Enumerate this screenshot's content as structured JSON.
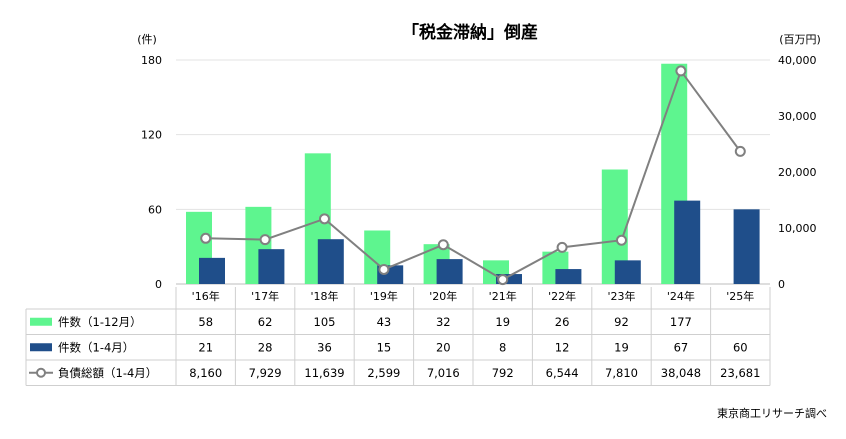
{
  "chart_data": {
    "type": "bar",
    "title": "「税金滞納」倒産",
    "left_unit": "(件)",
    "right_unit": "(百万円)",
    "left_ylim": [
      0,
      180
    ],
    "left_ticks": [
      "0",
      "60",
      "120",
      "180"
    ],
    "right_ylim": [
      0,
      40000
    ],
    "right_ticks": [
      "0",
      "10,000",
      "20,000",
      "30,000",
      "40,000"
    ],
    "categories": [
      "'16年",
      "'17年",
      "'18年",
      "'19年",
      "'20年",
      "'21年",
      "'22年",
      "'23年",
      "'24年",
      "'25年"
    ],
    "series": [
      {
        "name": "件数（1-12月）",
        "type": "bar",
        "axis": "left",
        "color": "#5ef58f",
        "values": [
          58,
          62,
          105,
          43,
          32,
          19,
          26,
          92,
          177,
          null
        ],
        "labels": [
          "58",
          "62",
          "105",
          "43",
          "32",
          "19",
          "26",
          "92",
          "177",
          ""
        ]
      },
      {
        "name": "件数（1-4月）",
        "type": "bar",
        "axis": "left",
        "color": "#1f4e8a",
        "values": [
          21,
          28,
          36,
          15,
          20,
          8,
          12,
          19,
          67,
          60
        ],
        "labels": [
          "21",
          "28",
          "36",
          "15",
          "20",
          "8",
          "12",
          "19",
          "67",
          "60"
        ]
      },
      {
        "name": "負債総額（1-4月）",
        "type": "line",
        "axis": "right",
        "color": "#808080",
        "values": [
          8160,
          7929,
          11639,
          2599,
          7016,
          792,
          6544,
          7810,
          38048,
          23681
        ],
        "labels": [
          "8,160",
          "7,929",
          "11,639",
          "2,599",
          "7,016",
          "792",
          "6,544",
          "7,810",
          "38,048",
          "23,681"
        ]
      }
    ],
    "source": "東京商工リサーチ調べ"
  }
}
